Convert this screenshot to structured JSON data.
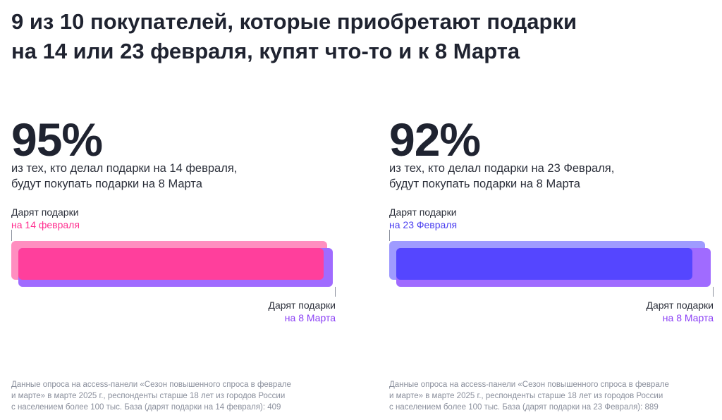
{
  "title": {
    "line1": "9 из 10 покупателей, которые приобретают подарки",
    "line2": "на 14 или 23 февраля, купят что-то и к 8 Марта"
  },
  "chart_data": [
    {
      "type": "bar",
      "value": 95,
      "value_label": "95%",
      "desc_line1": "из тех, кто делал подарки на 14 февраля,",
      "desc_line2": "будут покупать подарки на 8 Марта",
      "top_label_1": "Дарят подарки",
      "top_label_2": "на 14 февраля",
      "bottom_label_1": "Дарят подарки",
      "bottom_label_2": "на 8 Марта",
      "colors": {
        "base": "#ff8ec0",
        "overlay": "#ff3f9c",
        "secondary": "#a06bff",
        "accent_text": "#ff2e8f",
        "bottom_text": "#8a3ff5"
      },
      "note_line1": "Данные опроса на access-панели «Сезон повышенного спроса в феврале",
      "note_line2": "и марте» в марте 2025 г., респонденты старше 18 лет из городов России",
      "note_line3": "с населением более 100 тыс. База (дарят подарки на 14 февраля): 409"
    },
    {
      "type": "bar",
      "value": 92,
      "value_label": "92%",
      "desc_line1": "из тех, кто делал подарки на 23 Февраля,",
      "desc_line2": "будут покупать подарки на 8 Марта",
      "top_label_1": "Дарят подарки",
      "top_label_2": "на 23 Февраля",
      "bottom_label_1": "Дарят подарки",
      "bottom_label_2": "на 8 Марта",
      "colors": {
        "base": "#9f9bff",
        "overlay": "#5546ff",
        "secondary": "#a06bff",
        "accent_text": "#4a3ef0",
        "bottom_text": "#8a3ff5"
      },
      "note_line1": "Данные опроса на access-панели «Сезон повышенного спроса в феврале",
      "note_line2": "и марте» в марте 2025 г., респонденты старше 18 лет из городов России",
      "note_line3": "с населением более 100 тыс. База (дарят подарки на 23 Февраля): 889"
    }
  ]
}
